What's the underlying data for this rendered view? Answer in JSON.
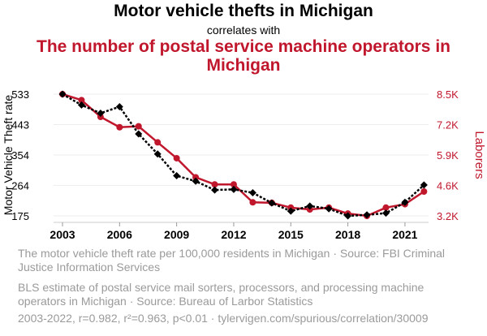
{
  "chart_data": {
    "type": "line",
    "title": "Motor vehicle thefts in Michigan",
    "subtitle": "correlates with",
    "title2": "The number of postal service machine operators in Michigan",
    "x": [
      2003,
      2004,
      2005,
      2006,
      2007,
      2008,
      2009,
      2010,
      2011,
      2012,
      2013,
      2014,
      2015,
      2016,
      2017,
      2018,
      2019,
      2020,
      2021,
      2022
    ],
    "x_ticks": [
      "2003",
      "2006",
      "2009",
      "2012",
      "2015",
      "2018",
      "2021"
    ],
    "ylabel_left": "Motor Vehicle Theft rate",
    "ylabel_right": "Laborers",
    "y_left_ticks": [
      "533",
      "443",
      "354",
      "264",
      "175"
    ],
    "y_left_range": [
      175,
      533
    ],
    "y_right_ticks": [
      "8.5K",
      "7.2K",
      "5.9K",
      "4.6K",
      "3.2K"
    ],
    "y_right_range": [
      3200,
      8500
    ],
    "grid": true,
    "series": [
      {
        "name": "The motor vehicle theft rate per 100,000 residents in Michigan · Source: FBI Criminal Justice Information Services",
        "axis": "left",
        "color": "#000000",
        "style": "dotted",
        "marker": "diamond",
        "values": [
          533,
          501,
          477,
          496,
          416,
          357,
          293,
          277,
          251,
          253,
          243,
          213,
          189,
          204,
          196,
          175,
          178,
          183,
          215,
          266
        ]
      },
      {
        "name": "BLS estimate of postal service mail sorters, processors, and processing machine operators in Michigan · Source: Bureau of Larbor Statistics",
        "axis": "right",
        "color": "#c0172d",
        "style": "solid",
        "marker": "circle",
        "values": [
          8500,
          8240,
          7510,
          7060,
          7100,
          6400,
          5710,
          4880,
          4570,
          4570,
          3790,
          3770,
          3560,
          3480,
          3560,
          3300,
          3200,
          3560,
          3710,
          4260
        ]
      }
    ],
    "footer": "2003-2022, r=0.982, r²=0.963, p<0.01 · tylervigen.com/spurious/correlation/30009"
  }
}
